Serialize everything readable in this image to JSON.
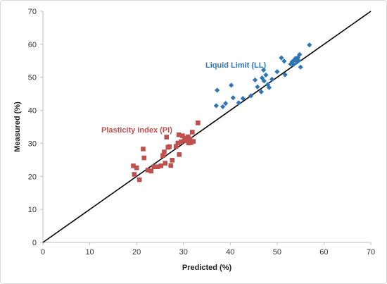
{
  "chart_data": {
    "type": "scatter",
    "title": "",
    "xlabel": "Predicted  (%)",
    "ylabel": "Measured  (%)",
    "xlim": [
      0,
      70
    ],
    "ylim": [
      0,
      70
    ],
    "xticks": [
      0,
      10,
      20,
      30,
      40,
      50,
      60,
      70
    ],
    "yticks": [
      0,
      10,
      20,
      30,
      40,
      50,
      60,
      70
    ],
    "grid": false,
    "reference_line": {
      "from": [
        0,
        0
      ],
      "to": [
        70,
        70
      ],
      "color": "#000000"
    },
    "series": [
      {
        "name": "Liquid Limit (LL)",
        "marker": "diamond",
        "color": "#2e75b6",
        "points": [
          [
            37.2,
            46.1
          ],
          [
            37.0,
            41.4
          ],
          [
            38.4,
            41.1
          ],
          [
            39.0,
            42.1
          ],
          [
            40.2,
            47.6
          ],
          [
            40.6,
            43.8
          ],
          [
            41.8,
            42.3
          ],
          [
            42.7,
            43.6
          ],
          [
            44.4,
            44.4
          ],
          [
            45.3,
            49.2
          ],
          [
            45.8,
            47.1
          ],
          [
            46.6,
            45.6
          ],
          [
            47.2,
            48.9
          ],
          [
            47.6,
            50.7
          ],
          [
            46.8,
            49.8
          ],
          [
            48.3,
            46.9
          ],
          [
            48.9,
            49.4
          ],
          [
            50.0,
            51.7
          ],
          [
            50.9,
            55.9
          ],
          [
            51.5,
            54.9
          ],
          [
            51.7,
            50.8
          ],
          [
            52.9,
            54.0
          ],
          [
            53.2,
            54.7
          ],
          [
            53.5,
            53.9
          ],
          [
            53.9,
            55.7
          ],
          [
            54.2,
            54.6
          ],
          [
            54.4,
            56.0
          ],
          [
            54.8,
            56.9
          ],
          [
            55.0,
            53.1
          ],
          [
            54.6,
            55.1
          ],
          [
            53.7,
            55.3
          ],
          [
            56.9,
            59.8
          ],
          [
            47.1,
            52.2
          ],
          [
            48.0,
            47.8
          ]
        ]
      },
      {
        "name": "Plasticity Index (PI)",
        "marker": "square",
        "color": "#c0504d",
        "points": [
          [
            19.3,
            23.2
          ],
          [
            19.5,
            20.6
          ],
          [
            20.0,
            22.6
          ],
          [
            20.6,
            19.0
          ],
          [
            21.4,
            28.3
          ],
          [
            21.6,
            25.6
          ],
          [
            22.4,
            21.9
          ],
          [
            23.1,
            21.6
          ],
          [
            23.7,
            22.9
          ],
          [
            24.5,
            22.9
          ],
          [
            25.2,
            23.2
          ],
          [
            25.6,
            26.3
          ],
          [
            25.9,
            27.4
          ],
          [
            26.1,
            24.0
          ],
          [
            26.4,
            31.9
          ],
          [
            26.7,
            28.8
          ],
          [
            27.0,
            29.0
          ],
          [
            27.3,
            23.3
          ],
          [
            27.6,
            24.9
          ],
          [
            28.4,
            29.1
          ],
          [
            28.8,
            30.1
          ],
          [
            29.1,
            26.6
          ],
          [
            29.5,
            30.5
          ],
          [
            29.8,
            32.3
          ],
          [
            30.2,
            31.0
          ],
          [
            30.6,
            30.8
          ],
          [
            31.0,
            32.0
          ],
          [
            31.4,
            31.3
          ],
          [
            31.6,
            30.2
          ],
          [
            31.9,
            33.4
          ],
          [
            32.1,
            30.6
          ],
          [
            33.1,
            36.2
          ],
          [
            29.0,
            32.6
          ],
          [
            30.4,
            31.6
          ],
          [
            31.1,
            30.1
          ]
        ]
      }
    ]
  }
}
